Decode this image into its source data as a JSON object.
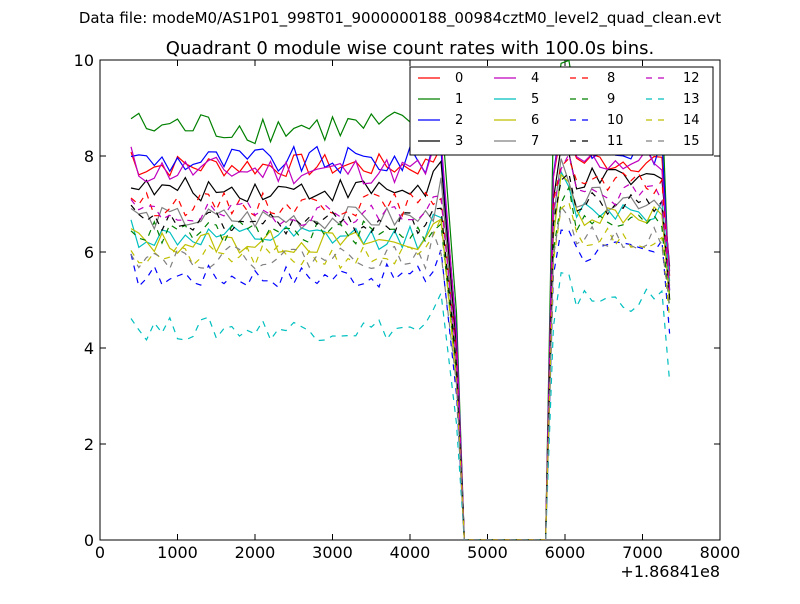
{
  "chart_data": {
    "type": "line",
    "suptitle": "Data file: modeM0/AS1P01_998T01_9000000188_00984cztM0_level2_quad_clean.evt",
    "title": "Quadrant 0 module wise count rates with 100.0s bins.",
    "xlabel": "",
    "ylabel": "",
    "x_offset_label": "+1.86841e8",
    "xlim": [
      0,
      8000
    ],
    "ylim": [
      0,
      10
    ],
    "xticks": [
      0,
      1000,
      2000,
      3000,
      4000,
      5000,
      6000,
      7000,
      8000
    ],
    "yticks": [
      0,
      2,
      4,
      6,
      8,
      10
    ],
    "legend_position": "top-right",
    "segments": [
      {
        "x_start": 400,
        "x_end": 4400,
        "step": 100
      },
      {
        "x_start": 4600,
        "x_end": 4700,
        "step": 100
      },
      {
        "x_start": 5750,
        "x_end": 5750,
        "step": 100
      },
      {
        "x_start": 5850,
        "x_end": 7350,
        "step": 100
      }
    ],
    "gap": {
      "x_start": 4700,
      "x_end": 5750,
      "value": 0
    },
    "series": [
      {
        "name": "0",
        "color": "#ff0000",
        "style": "solid",
        "level1": 7.8,
        "level2": 7.9,
        "amp": 0.25,
        "final": 5.5
      },
      {
        "name": "1",
        "color": "#008000",
        "style": "solid",
        "level1": 8.6,
        "level2": 9.3,
        "amp": 0.35,
        "final": 5.0
      },
      {
        "name": "2",
        "color": "#0000ff",
        "style": "solid",
        "level1": 7.9,
        "level2": 8.1,
        "amp": 0.3,
        "final": 5.2
      },
      {
        "name": "3",
        "color": "#000000",
        "style": "solid",
        "level1": 7.3,
        "level2": 7.5,
        "amp": 0.25,
        "final": 5.7
      },
      {
        "name": "4",
        "color": "#bf00bf",
        "style": "solid",
        "level1": 7.7,
        "level2": 7.9,
        "amp": 0.3,
        "final": 5.6
      },
      {
        "name": "5",
        "color": "#00bfbf",
        "style": "solid",
        "level1": 6.3,
        "level2": 6.9,
        "amp": 0.25,
        "final": 5.4
      },
      {
        "name": "6",
        "color": "#bfbf00",
        "style": "solid",
        "level1": 6.2,
        "level2": 6.8,
        "amp": 0.25,
        "final": 5.0
      },
      {
        "name": "7",
        "color": "#808080",
        "style": "solid",
        "level1": 6.7,
        "level2": 7.1,
        "amp": 0.25,
        "final": 5.3
      },
      {
        "name": "8",
        "color": "#ff0000",
        "style": "dashed",
        "level1": 7.0,
        "level2": 7.4,
        "amp": 0.25,
        "final": 5.1
      },
      {
        "name": "9",
        "color": "#008000",
        "style": "dashed",
        "level1": 6.4,
        "level2": 6.6,
        "amp": 0.25,
        "final": 4.8
      },
      {
        "name": "10",
        "color": "#0000ff",
        "style": "dashed",
        "level1": 5.5,
        "level2": 6.0,
        "amp": 0.25,
        "final": 4.3
      },
      {
        "name": "11",
        "color": "#000000",
        "style": "dashed",
        "level1": 6.6,
        "level2": 7.0,
        "amp": 0.25,
        "final": 5.0
      },
      {
        "name": "12",
        "color": "#bf00bf",
        "style": "dashed",
        "level1": 6.8,
        "level2": 7.2,
        "amp": 0.25,
        "final": 5.2
      },
      {
        "name": "13",
        "color": "#00bfbf",
        "style": "dashed",
        "level1": 4.4,
        "level2": 5.0,
        "amp": 0.25,
        "final": 3.3
      },
      {
        "name": "14",
        "color": "#bfbf00",
        "style": "dashed",
        "level1": 5.9,
        "level2": 6.3,
        "amp": 0.25,
        "final": 4.6
      },
      {
        "name": "15",
        "color": "#808080",
        "style": "dashed",
        "level1": 5.9,
        "level2": 6.3,
        "amp": 0.25,
        "final": 4.9
      }
    ],
    "legend_columns": [
      [
        "0",
        "1",
        "2",
        "3"
      ],
      [
        "4",
        "5",
        "6",
        "7"
      ],
      [
        "8",
        "9",
        "10",
        "11"
      ],
      [
        "12",
        "13",
        "14",
        "15"
      ]
    ]
  }
}
